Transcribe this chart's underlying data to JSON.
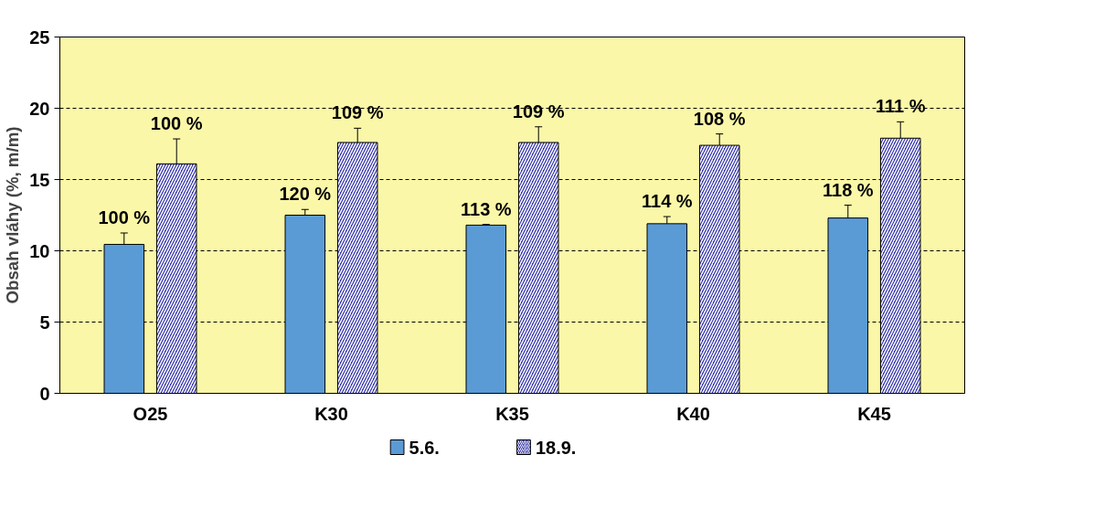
{
  "chart_data": {
    "type": "bar",
    "ylabel": "Obsah vláhy (%, m/m)",
    "categories": [
      "O25",
      "K30",
      "K35",
      "K40",
      "K45"
    ],
    "series": [
      {
        "name": "5.6.",
        "color": "#5b9bd5",
        "values": [
          10.45,
          12.5,
          11.8,
          11.9,
          12.3
        ],
        "errors": [
          0.8,
          0.4,
          0.05,
          0.5,
          0.9
        ]
      },
      {
        "name": "18.9.",
        "color": "#3333aa",
        "values": [
          16.1,
          17.6,
          17.6,
          17.4,
          17.9
        ],
        "errors": [
          1.75,
          1.0,
          1.1,
          0.8,
          1.15
        ]
      }
    ],
    "annotations": [
      "100 %",
      "120 %",
      "113 %",
      "114 %",
      "118 %",
      "100 %",
      "109 %",
      "109 %",
      "108 %",
      "111 %"
    ],
    "ylim": [
      0,
      25
    ],
    "yticks": [
      0,
      5,
      10,
      15,
      20,
      25
    ],
    "grid": "y",
    "legend": "bottom"
  }
}
